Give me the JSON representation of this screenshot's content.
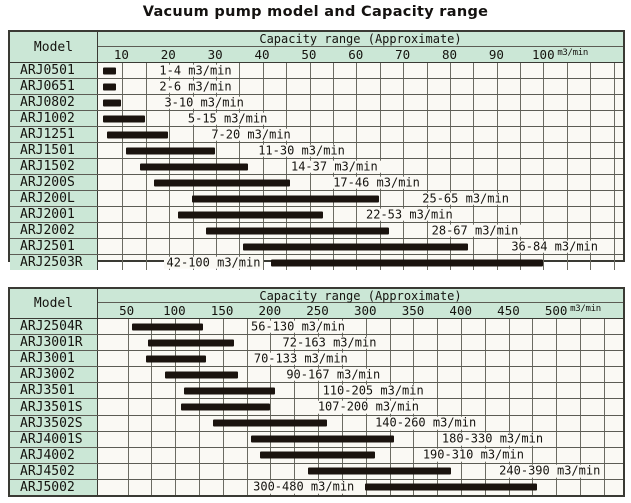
{
  "page_title": "Vacuum pump model and Capacity range",
  "colors": {
    "header_bg": "#cbe7d6",
    "row_bg": "#faf9f4",
    "bar": "#1a130e",
    "grid_line": "#6b6b62",
    "row_line": "#5c5c54",
    "border": "#3a3a34"
  },
  "chart_data": [
    {
      "type": "bar",
      "subtype": "horizontal-range",
      "model_header": "Model",
      "capacity_header": "Capacity range (Approximate)",
      "unit": "m3/min",
      "axis": {
        "ticks": [
          10,
          20,
          30,
          40,
          50,
          60,
          70,
          80,
          90,
          100
        ],
        "range": [
          5,
          117
        ],
        "grid_step": 5,
        "grid_on": true
      },
      "rows": [
        {
          "model": "ARJ0501",
          "range": [
            1,
            4
          ],
          "label": "1-4 m3/min",
          "label_side": "right"
        },
        {
          "model": "ARJ0651",
          "range": [
            2,
            6
          ],
          "label": "2-6 m3/min",
          "label_side": "right"
        },
        {
          "model": "ARJ0802",
          "range": [
            3,
            10
          ],
          "label": "3-10 m3/min",
          "label_side": "right"
        },
        {
          "model": "ARJ1002",
          "range": [
            5,
            15
          ],
          "label": "5-15 m3/min",
          "label_side": "right"
        },
        {
          "model": "ARJ1251",
          "range": [
            7,
            20
          ],
          "label": "7-20 m3/min",
          "label_side": "right"
        },
        {
          "model": "ARJ1501",
          "range": [
            11,
            30
          ],
          "label": "11-30 m3/min",
          "label_side": "right"
        },
        {
          "model": "ARJ1502",
          "range": [
            14,
            37
          ],
          "label": "14-37 m3/min",
          "label_side": "right"
        },
        {
          "model": "ARJ200S",
          "range": [
            17,
            46
          ],
          "label": "17-46 m3/min",
          "label_side": "right"
        },
        {
          "model": "ARJ200L",
          "range": [
            25,
            65
          ],
          "label": "25-65 m3/min",
          "label_side": "right"
        },
        {
          "model": "ARJ2001",
          "range": [
            22,
            53
          ],
          "label": "22-53 m3/min",
          "label_side": "right"
        },
        {
          "model": "ARJ2002",
          "range": [
            28,
            67
          ],
          "label": "28-67 m3/min",
          "label_side": "right"
        },
        {
          "model": "ARJ2501",
          "range": [
            36,
            84
          ],
          "label": "36-84 m3/min",
          "label_side": "right"
        },
        {
          "model": "ARJ2503R",
          "range": [
            42,
            100
          ],
          "label": "42-100 m3/min",
          "label_side": "left"
        }
      ]
    },
    {
      "type": "bar",
      "subtype": "horizontal-range",
      "model_header": "Model",
      "capacity_header": "Capacity range (Approximate)",
      "unit": "m3/min",
      "axis": {
        "ticks": [
          50,
          100,
          150,
          200,
          250,
          300,
          350,
          400,
          450,
          500
        ],
        "range": [
          20,
          570
        ],
        "grid_step": 25,
        "grid_on": true
      },
      "rows": [
        {
          "model": "ARJ2504R",
          "range": [
            56,
            130
          ],
          "label": "56-130 m3/min",
          "label_side": "right"
        },
        {
          "model": "ARJ3001R",
          "range": [
            72,
            163
          ],
          "label": "72-163 m3/min",
          "label_side": "right"
        },
        {
          "model": "ARJ3001",
          "range": [
            70,
            133
          ],
          "label": "70-133 m3/min",
          "label_side": "right"
        },
        {
          "model": "ARJ3002",
          "range": [
            90,
            167
          ],
          "label": "90-167 m3/min",
          "label_side": "right"
        },
        {
          "model": "ARJ3501",
          "range": [
            110,
            205
          ],
          "label": "110-205 m3/min",
          "label_side": "right"
        },
        {
          "model": "ARJ3501S",
          "range": [
            107,
            200
          ],
          "label": "107-200 m3/min",
          "label_side": "right"
        },
        {
          "model": "ARJ3502S",
          "range": [
            140,
            260
          ],
          "label": "140-260 m3/min",
          "label_side": "right"
        },
        {
          "model": "ARJ4001S",
          "range": [
            180,
            330
          ],
          "label": "180-330 m3/min",
          "label_side": "right"
        },
        {
          "model": "ARJ4002",
          "range": [
            190,
            310
          ],
          "label": "190-310 m3/min",
          "label_side": "right"
        },
        {
          "model": "ARJ4502",
          "range": [
            240,
            390
          ],
          "label": "240-390 m3/min",
          "label_side": "right"
        },
        {
          "model": "ARJ5002",
          "range": [
            300,
            480
          ],
          "label": "300-480 m3/min",
          "label_side": "left"
        }
      ]
    }
  ]
}
